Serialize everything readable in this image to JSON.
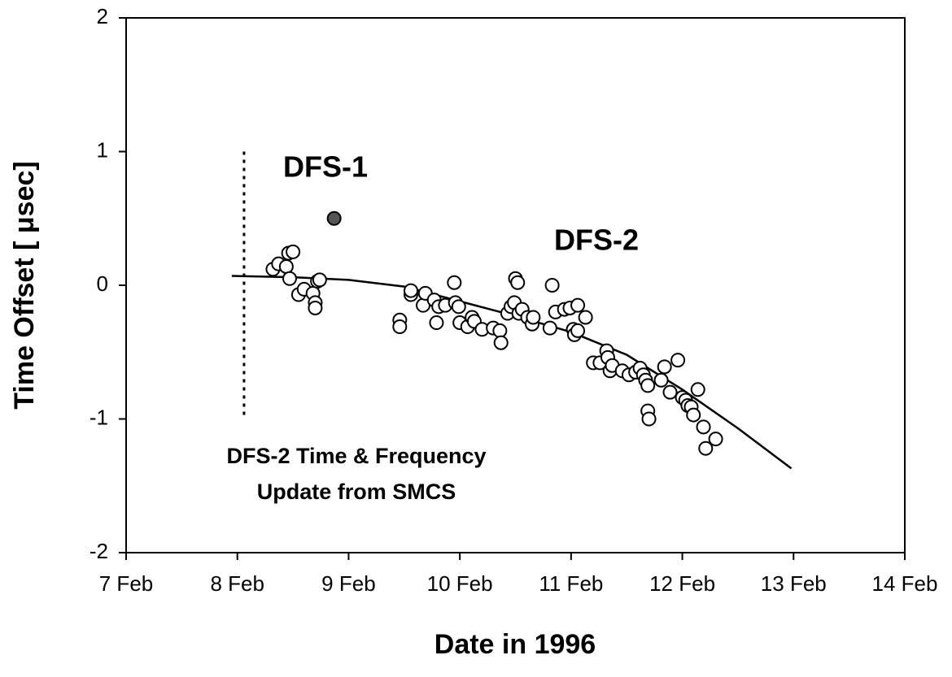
{
  "chart_data": {
    "type": "scatter",
    "xlabel": "Date in 1996",
    "ylabel": "Time Offset [ μsec]",
    "xlim": [
      7,
      14
    ],
    "ylim": [
      -2,
      2
    ],
    "xticks": [
      {
        "value": 7,
        "label": "7 Feb"
      },
      {
        "value": 8,
        "label": "8 Feb"
      },
      {
        "value": 9,
        "label": "9 Feb"
      },
      {
        "value": 10,
        "label": "10 Feb"
      },
      {
        "value": 11,
        "label": "11 Feb"
      },
      {
        "value": 12,
        "label": "12 Feb"
      },
      {
        "value": 13,
        "label": "13 Feb"
      },
      {
        "value": 14,
        "label": "14 Feb"
      }
    ],
    "yticks": [
      -2,
      -1,
      0,
      1,
      2
    ],
    "annotations": [
      "DFS-1",
      "DFS-2",
      "DFS-2 Time & Frequency",
      "Update from SMCS"
    ],
    "series": [
      {
        "color": "#ffffff",
        "x": [
          8.32,
          8.37,
          8.44,
          8.46,
          8.5,
          8.47,
          8.55,
          8.6,
          8.68,
          8.7,
          8.7,
          8.72,
          8.74,
          9.46,
          9.46,
          9.56,
          9.56,
          9.67,
          9.69,
          9.77,
          9.79,
          9.81,
          9.87,
          9.95,
          9.96,
          9.99,
          10.0,
          10.07,
          10.11,
          10.13,
          10.2,
          10.3,
          10.36,
          10.37,
          10.43,
          10.46,
          10.49,
          10.5,
          10.52,
          10.53,
          10.56,
          10.61,
          10.65,
          10.66,
          10.81,
          10.83,
          10.86,
          10.94,
          10.99,
          11.02,
          11.03,
          11.06,
          11.06,
          11.13,
          11.2,
          11.26,
          11.32,
          11.33,
          11.35,
          11.37,
          11.46,
          11.52,
          11.58,
          11.62,
          11.65,
          11.67,
          11.69,
          11.69,
          11.7,
          11.81,
          11.84,
          11.89,
          11.96,
          12.0,
          12.03,
          12.05,
          12.08,
          12.1,
          12.14,
          12.19,
          12.21,
          12.3
        ],
        "values": [
          0.12,
          0.16,
          0.14,
          0.24,
          0.25,
          0.05,
          -0.07,
          -0.03,
          -0.06,
          -0.13,
          -0.17,
          0.03,
          0.04,
          -0.26,
          -0.31,
          -0.07,
          -0.04,
          -0.15,
          -0.06,
          -0.11,
          -0.28,
          -0.16,
          -0.15,
          0.02,
          -0.13,
          -0.16,
          -0.28,
          -0.31,
          -0.24,
          -0.27,
          -0.33,
          -0.32,
          -0.34,
          -0.43,
          -0.21,
          -0.16,
          -0.13,
          0.05,
          0.02,
          -0.21,
          -0.18,
          -0.24,
          -0.29,
          -0.24,
          -0.32,
          0.0,
          -0.2,
          -0.18,
          -0.17,
          -0.33,
          -0.37,
          -0.15,
          -0.34,
          -0.24,
          -0.58,
          -0.58,
          -0.49,
          -0.54,
          -0.64,
          -0.6,
          -0.64,
          -0.67,
          -0.65,
          -0.62,
          -0.67,
          -0.71,
          -0.75,
          -0.94,
          -1.0,
          -0.71,
          -0.61,
          -0.8,
          -0.56,
          -0.84,
          -0.86,
          -0.9,
          -0.91,
          -0.97,
          -0.78,
          -1.06,
          -1.22,
          -1.15
        ]
      },
      {
        "color": "#555555",
        "x": [
          8.87
        ],
        "values": [
          0.5
        ]
      }
    ],
    "fit": {
      "color": "#000000",
      "x": [
        7.95,
        8.5,
        9.0,
        9.5,
        10.0,
        10.5,
        11.0,
        11.5,
        12.0,
        12.5,
        12.98
      ],
      "values": [
        0.07,
        0.06,
        0.04,
        -0.01,
        -0.12,
        -0.23,
        -0.35,
        -0.52,
        -0.78,
        -1.07,
        -1.37
      ]
    },
    "marker_line": {
      "x": 8.06,
      "y": [
        1,
        -1
      ]
    }
  }
}
